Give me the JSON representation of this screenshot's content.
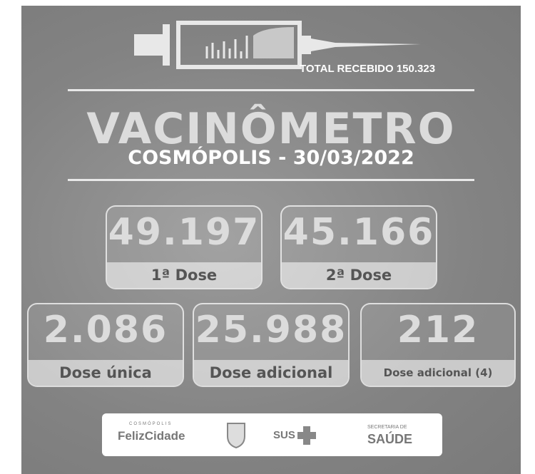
{
  "header": {
    "total_received": "TOTAL RECEBIDO 150.323",
    "title": "VACINÔMETRO",
    "subtitle": "COSMÓPOLIS - 30/03/2022"
  },
  "cards": [
    {
      "value": "49.197",
      "label": "1ª Dose"
    },
    {
      "value": "45.166",
      "label": "2ª Dose"
    },
    {
      "value": "2.086",
      "label": "Dose única"
    },
    {
      "value": "25.988",
      "label": "Dose adicional"
    },
    {
      "value": "212",
      "label": "Dose adicional (4)"
    }
  ],
  "footer": {
    "logos": [
      "COSMÓPOLIS",
      "FelizCidade",
      "SUS",
      "SECRETARIA DE",
      "SAÚDE"
    ]
  }
}
